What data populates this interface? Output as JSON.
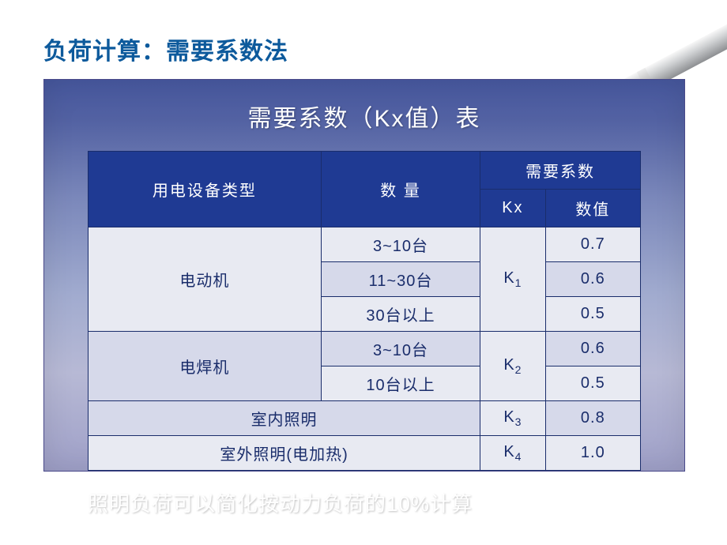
{
  "page_title": "负荷计算：需要系数法",
  "slide": {
    "title": "需要系数（Kx值）表",
    "footnote": "照明负荷可以简化按动力负荷的10%计算",
    "style": {
      "title_fontsize": 30,
      "title_color": "#ffffff",
      "header_bg": "#1f3a93",
      "header_fg": "#ffffff",
      "cell_bg": "#e8eaf2",
      "cell_alt_bg": "#d6d9ea",
      "cell_fg": "#1a2d6b",
      "border_color": "#1a2d6b",
      "slide_gradient_top": "#47589f",
      "slide_gradient_bottom": "#9fa0c8",
      "footnote_fontsize": 26,
      "footnote_color": "#ffffff"
    },
    "table": {
      "headers": {
        "col_type": "用电设备类型",
        "col_qty": "数 量",
        "col_coef_group": "需要系数",
        "col_kx": "Kx",
        "col_value": "数值"
      },
      "groups": [
        {
          "type": "电动机",
          "kx_label": "K",
          "kx_sub": "1",
          "rows": [
            {
              "qty": "3~10台",
              "value": "0.7",
              "alt": false
            },
            {
              "qty": "11~30台",
              "value": "0.6",
              "alt": true
            },
            {
              "qty": "30台以上",
              "value": "0.5",
              "alt": false
            }
          ]
        },
        {
          "type": "电焊机",
          "kx_label": "K",
          "kx_sub": "2",
          "rows": [
            {
              "qty": "3~10台",
              "value": "0.6",
              "alt": true
            },
            {
              "qty": "10台以上",
              "value": "0.5",
              "alt": false
            }
          ]
        },
        {
          "type": "室内照明",
          "kx_label": "K",
          "kx_sub": "3",
          "rows": [
            {
              "qty": "",
              "value": "0.8",
              "alt": true
            }
          ]
        },
        {
          "type": "室外照明(电加热)",
          "kx_label": "K",
          "kx_sub": "4",
          "rows": [
            {
              "qty": "",
              "value": "1.0",
              "alt": false
            }
          ]
        }
      ]
    }
  },
  "pen_decoration": {
    "body_color_light": "#f8f8f8",
    "body_color_dark": "#8d8f92",
    "nib_color": "#3a3a3a"
  }
}
